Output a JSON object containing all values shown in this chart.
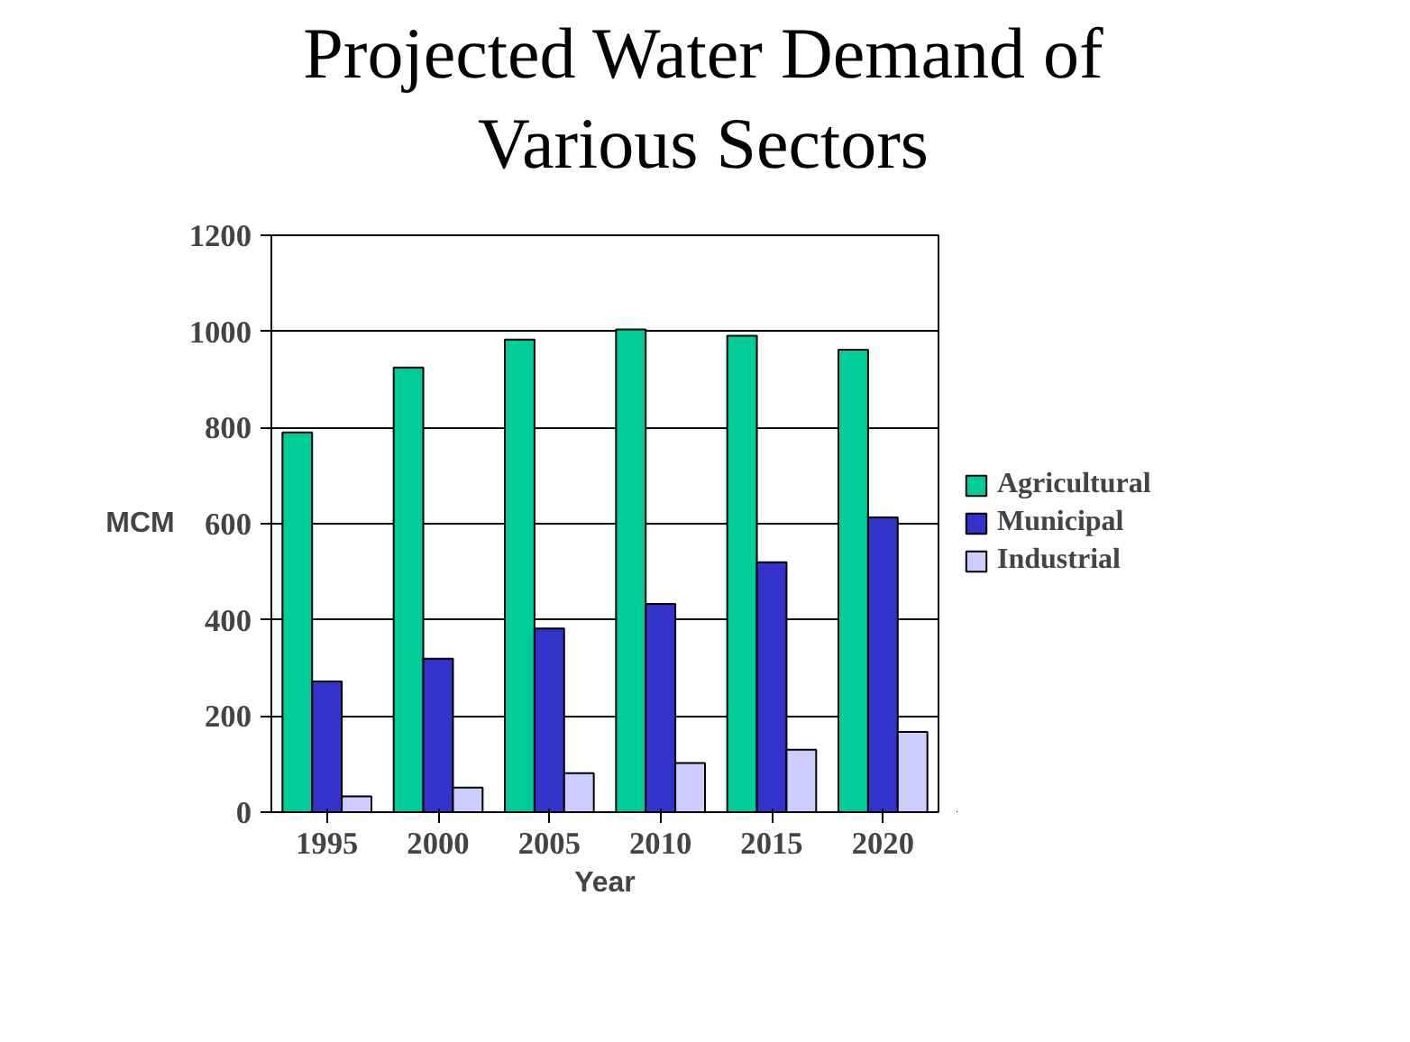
{
  "chart_data": {
    "type": "bar",
    "title": "Projected Water Demand of Various Sectors",
    "xlabel": "Year",
    "ylabel": "MCM",
    "categories": [
      "1995",
      "2000",
      "2005",
      "2010",
      "2015",
      "2020"
    ],
    "series": [
      {
        "name": "Agricultural",
        "color": "#00cc99",
        "values": [
          790,
          925,
          983,
          1004,
          991,
          962
        ]
      },
      {
        "name": "Municipal",
        "color": "#3333cc",
        "values": [
          272,
          319,
          382,
          433,
          520,
          613
        ]
      },
      {
        "name": "Industrial",
        "color": "#ccccff",
        "values": [
          33,
          51,
          81,
          102,
          130,
          167
        ]
      }
    ],
    "ylim": [
      0,
      1200
    ],
    "yticks": [
      0,
      200,
      400,
      600,
      800,
      1000,
      1200
    ],
    "grid": "y",
    "legend": "right"
  }
}
